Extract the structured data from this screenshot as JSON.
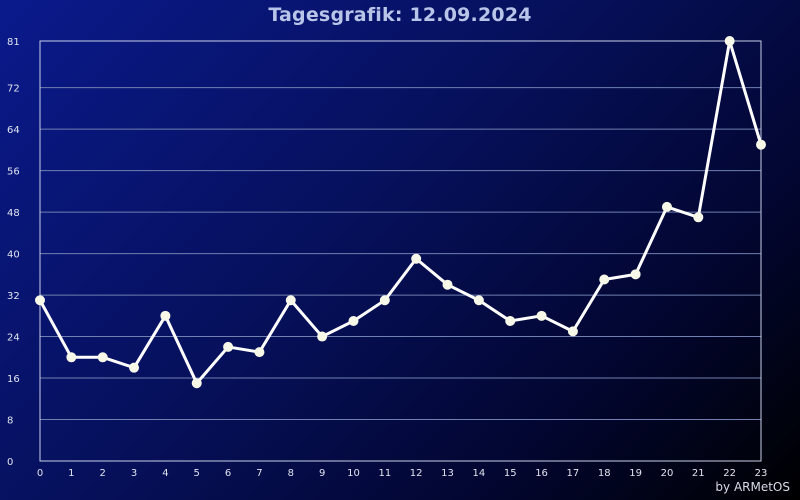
{
  "credit": "by ARMetOS",
  "chart_data": {
    "type": "line",
    "title": "Tagesgrafik: 12.09.2024",
    "xlabel": "",
    "ylabel": "",
    "x": [
      0,
      1,
      2,
      3,
      4,
      5,
      6,
      7,
      8,
      9,
      10,
      11,
      12,
      13,
      14,
      15,
      16,
      17,
      18,
      19,
      20,
      21,
      22,
      23
    ],
    "series": [
      {
        "values": [
          31,
          20,
          20,
          18,
          28,
          15,
          22,
          21,
          31,
          24,
          27,
          31,
          39,
          34,
          31,
          27,
          28,
          25,
          35,
          36,
          49,
          47,
          81,
          61
        ]
      }
    ],
    "xlim": [
      0,
      23
    ],
    "ylim": [
      0,
      81
    ],
    "yticks": [
      0,
      8,
      16,
      24,
      32,
      40,
      48,
      56,
      64,
      72,
      81
    ],
    "xticks": [
      0,
      1,
      2,
      3,
      4,
      5,
      6,
      7,
      8,
      9,
      10,
      11,
      12,
      13,
      14,
      15,
      16,
      17,
      18,
      19,
      20,
      21,
      22,
      23
    ],
    "grid": true,
    "legend": "none",
    "colors": {
      "line": "#ffffff",
      "marker": "#f8f8e8",
      "grid": "#7080b0",
      "axis": "#c8d0e8"
    }
  }
}
